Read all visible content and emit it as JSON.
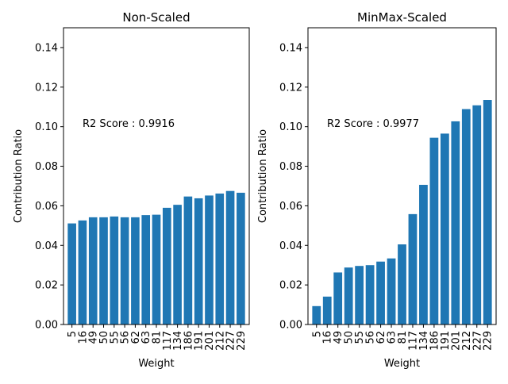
{
  "chart_data": [
    {
      "type": "bar",
      "title": "Non-Scaled",
      "xlabel": "Weight",
      "ylabel": "Contribution Ratio",
      "ylim": [
        0,
        0.15
      ],
      "yticks": [
        "0.00",
        "0.02",
        "0.04",
        "0.06",
        "0.08",
        "0.10",
        "0.12",
        "0.14"
      ],
      "annotation": "R2 Score : 0.9916",
      "annotation_y": 0.1,
      "color": "#1f77b4",
      "grid": false,
      "categories": [
        "5",
        "16",
        "49",
        "50",
        "55",
        "56",
        "62",
        "63",
        "81",
        "117",
        "134",
        "186",
        "191",
        "201",
        "212",
        "227",
        "229"
      ],
      "values": [
        0.0511,
        0.0526,
        0.0542,
        0.0542,
        0.0546,
        0.0542,
        0.0542,
        0.0553,
        0.0555,
        0.059,
        0.0605,
        0.0647,
        0.0638,
        0.0652,
        0.0662,
        0.0675,
        0.0666
      ]
    },
    {
      "type": "bar",
      "title": "MinMax-Scaled",
      "xlabel": "Weight",
      "ylabel": "Contribution Ratio",
      "ylim": [
        0,
        0.15
      ],
      "yticks": [
        "0.00",
        "0.02",
        "0.04",
        "0.06",
        "0.08",
        "0.10",
        "0.12",
        "0.14"
      ],
      "annotation": "R2 Score : 0.9977",
      "annotation_y": 0.1,
      "color": "#1f77b4",
      "grid": false,
      "categories": [
        "5",
        "16",
        "49",
        "50",
        "55",
        "56",
        "62",
        "63",
        "81",
        "117",
        "134",
        "186",
        "191",
        "201",
        "212",
        "227",
        "229"
      ],
      "values": [
        0.0093,
        0.0141,
        0.0263,
        0.0288,
        0.0296,
        0.03,
        0.0318,
        0.0334,
        0.0405,
        0.0558,
        0.0706,
        0.0944,
        0.0965,
        0.1027,
        0.1089,
        0.1108,
        0.1135
      ]
    }
  ]
}
